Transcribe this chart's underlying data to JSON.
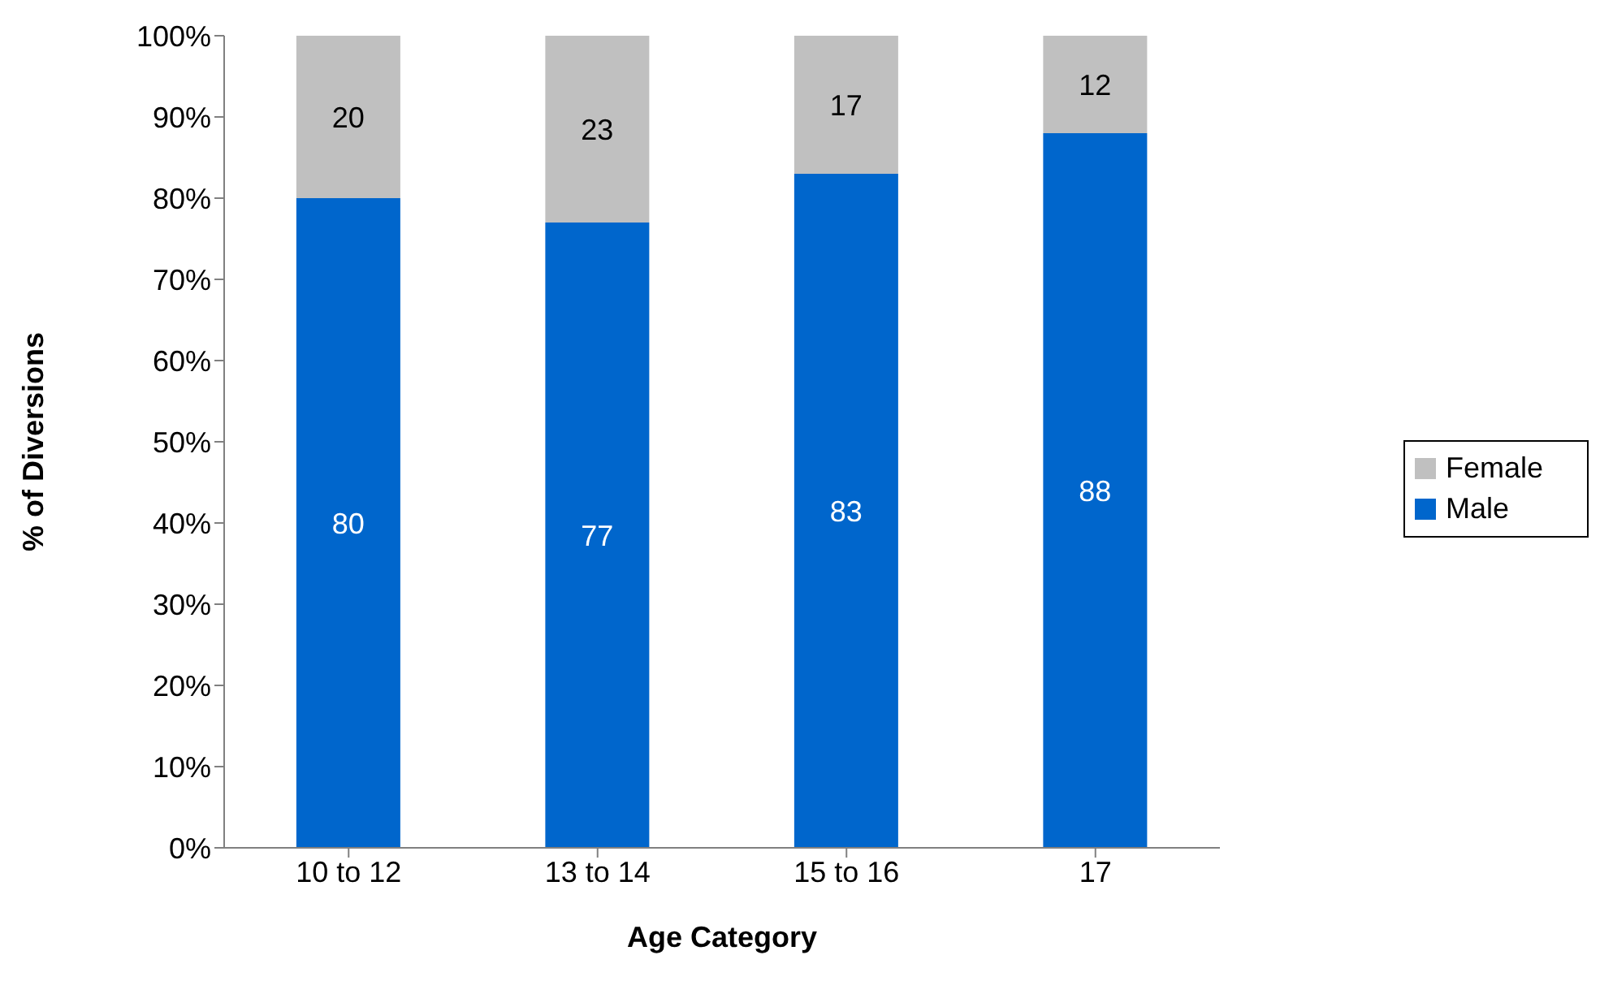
{
  "chart_data": {
    "type": "bar",
    "stacked": true,
    "xlabel": "Age Category",
    "ylabel": "% of Diversions",
    "categories": [
      "10 to 12",
      "13 to 14",
      "15 to 16",
      "17"
    ],
    "series": [
      {
        "name": "Male",
        "color": "#0066cc",
        "values": [
          80,
          77,
          83,
          88
        ]
      },
      {
        "name": "Female",
        "color": "#c0c0c0",
        "values": [
          20,
          23,
          17,
          12
        ]
      }
    ],
    "ylim": [
      0,
      100
    ],
    "yticks": [
      {
        "value": 0,
        "label": "0%"
      },
      {
        "value": 10,
        "label": "10%"
      },
      {
        "value": 20,
        "label": "20%"
      },
      {
        "value": 30,
        "label": "30%"
      },
      {
        "value": 40,
        "label": "40%"
      },
      {
        "value": 50,
        "label": "50%"
      },
      {
        "value": 60,
        "label": "60%"
      },
      {
        "value": 70,
        "label": "70%"
      },
      {
        "value": 80,
        "label": "80%"
      },
      {
        "value": 90,
        "label": "90%"
      },
      {
        "value": 100,
        "label": "100%"
      }
    ],
    "data_labels": true,
    "legend": "right"
  }
}
